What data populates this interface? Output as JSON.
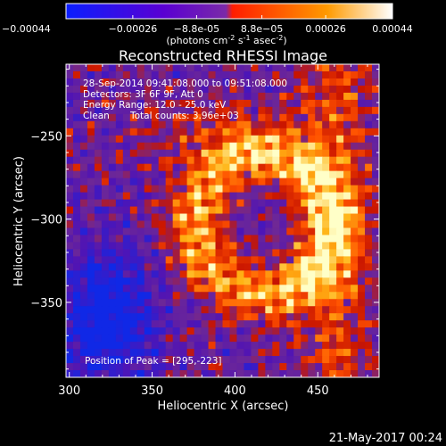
{
  "colorbar": {
    "tick_labels": [
      "-0.00044",
      "-0.00026",
      "-8.8e-05",
      "8.8e-05",
      "0.00026",
      "0.00044"
    ],
    "tick_values": [
      -0.00044,
      -0.00026,
      -8.8e-05,
      8.8e-05,
      0.00026,
      0.00044
    ],
    "range": [
      -0.00044,
      0.00044
    ],
    "unit_main": "(photons cm",
    "unit_exp1": "-2",
    "unit_mid": " s",
    "unit_exp2": "-1",
    "unit_end": " asec",
    "unit_exp3": "-2",
    "unit_close": ")",
    "colors": [
      "#0a1eff",
      "#5a00d2",
      "#7a2aa8",
      "#ff1d00",
      "#ff9a00",
      "#ffffff"
    ]
  },
  "chart_data": {
    "type": "heatmap",
    "title": "Reconstructed RHESSI Image",
    "xlabel": "Heliocentric X (arcsec)",
    "ylabel": "Heliocentric Y (arcsec)",
    "xlim": [
      298,
      487
    ],
    "ylim": [
      -395,
      -207
    ],
    "x_ticks": [
      300,
      350,
      400,
      450
    ],
    "y_ticks": [
      -250,
      -300,
      -350
    ],
    "x_tick_labels": [
      "300",
      "350",
      "400",
      "450"
    ],
    "y_tick_labels": [
      "-250",
      "-300",
      "-350"
    ],
    "grid": false,
    "peak": {
      "x": 295,
      "y": -223
    }
  },
  "annotations": {
    "line1": "28-Sep-2014 09:41:08.000 to 09:51:08.000",
    "line2": "Detectors: 3F 6F 9F, Att 0",
    "line3": "Energy Range: 12.0 - 25.0 keV",
    "line4_method": "Clean",
    "line4_counts": "Total counts: 3.96e+03",
    "peak_label": "Position of Peak = [295,-223]"
  },
  "footer": {
    "date": "21-May-2017 00:24"
  }
}
